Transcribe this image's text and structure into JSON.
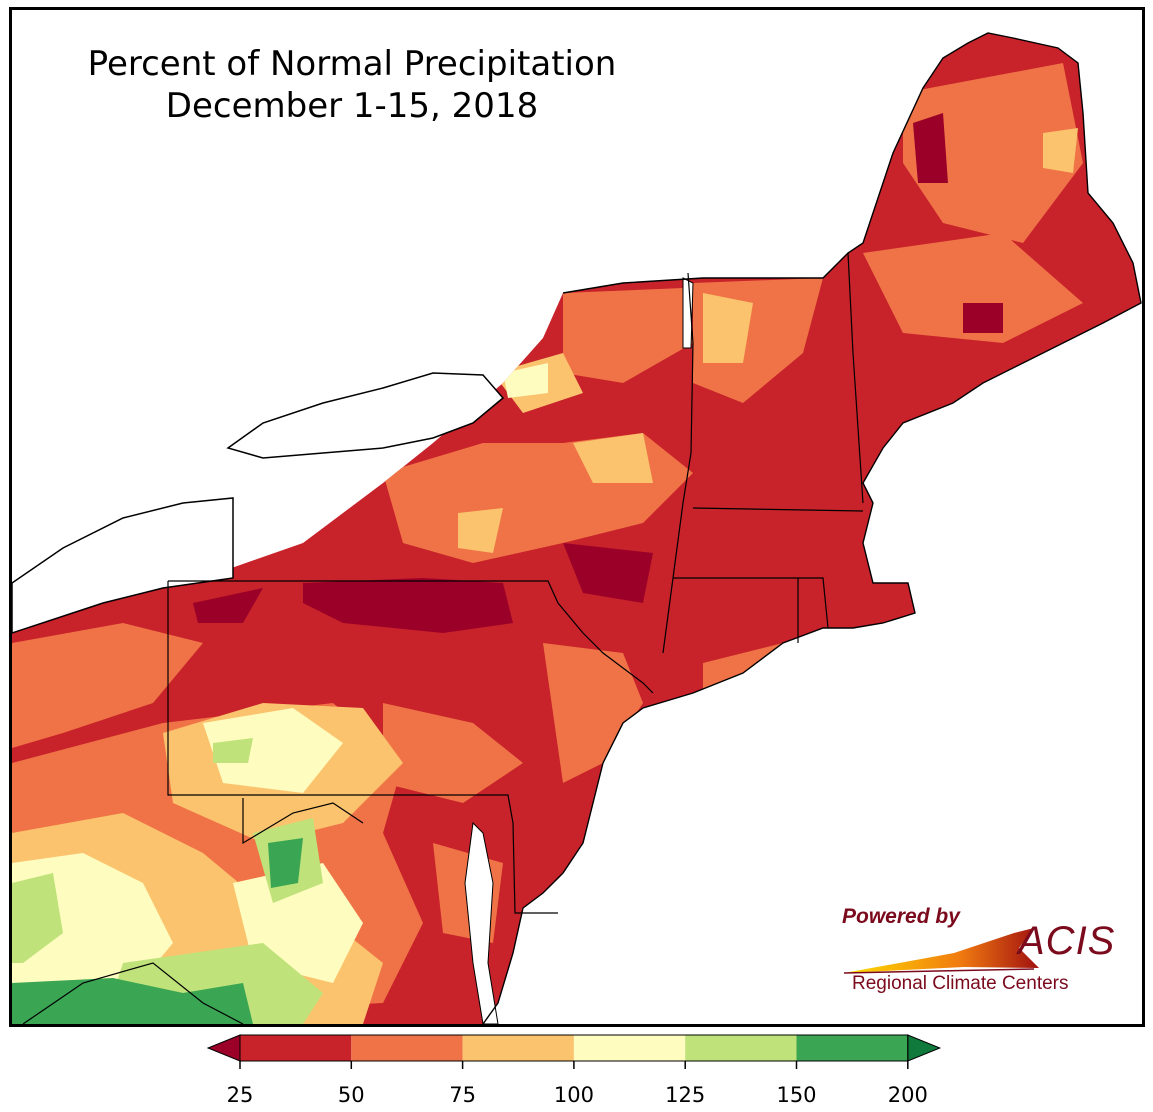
{
  "title": {
    "line1": "Percent of Normal Precipitation",
    "line2": "December 1-15, 2018"
  },
  "logo": {
    "powered_by": "Powered by",
    "name": "ACIS",
    "subtitle": "Regional Climate Centers"
  },
  "legend": {
    "bins": [
      {
        "from": 25,
        "to": 50,
        "color": "#c8222a"
      },
      {
        "from": 50,
        "to": 75,
        "color": "#f07347"
      },
      {
        "from": 75,
        "to": 100,
        "color": "#fbc36d"
      },
      {
        "from": 100,
        "to": 125,
        "color": "#fffcbf"
      },
      {
        "from": 125,
        "to": 150,
        "color": "#bfe27a"
      },
      {
        "from": 150,
        "to": 200,
        "color": "#3aa553"
      }
    ],
    "under_color": "#9b0028",
    "over_color": "#0f7a3c",
    "tick_labels": [
      "25",
      "50",
      "75",
      "100",
      "125",
      "150",
      "200"
    ]
  },
  "colors": {
    "lake": "#ffffff",
    "border": "#000000",
    "county": "#8c8c8c"
  }
}
